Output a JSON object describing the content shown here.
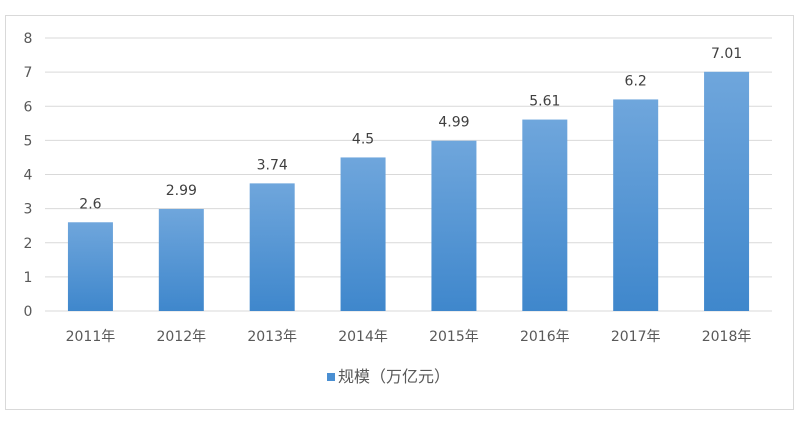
{
  "chart_data": {
    "type": "bar",
    "categories": [
      "2011年",
      "2012年",
      "2013年",
      "2014年",
      "2015年",
      "2016年",
      "2017年",
      "2018年"
    ],
    "series": [
      {
        "name": "规模（万亿元）",
        "values": [
          2.6,
          2.99,
          3.74,
          4.5,
          4.99,
          5.61,
          6.2,
          7.01
        ]
      }
    ],
    "data_labels": [
      "2.6",
      "2.99",
      "3.74",
      "4.5",
      "4.99",
      "5.61",
      "6.2",
      "7.01"
    ],
    "yticks": [
      "0",
      "1",
      "2",
      "3",
      "4",
      "5",
      "6",
      "7",
      "8"
    ],
    "ylim": [
      0,
      8
    ],
    "grid": true,
    "legend": "bottom",
    "colors": {
      "bar_top": "#6fa6dc",
      "bar_bottom": "#3f87cc",
      "grid": "#d9d9d9",
      "legend_marker": "#4a8fd2"
    }
  }
}
